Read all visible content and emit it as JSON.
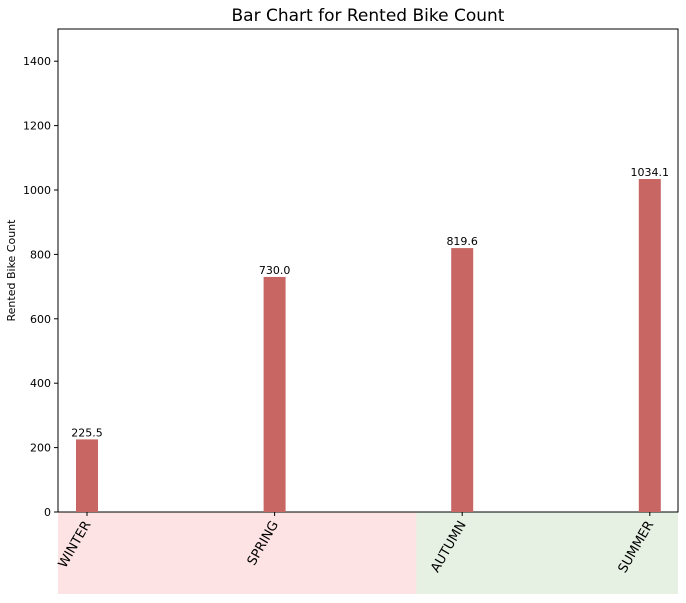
{
  "chart_data": {
    "type": "bar",
    "title": "Bar Chart for Rented Bike Count",
    "xlabel": "",
    "ylabel": "Rented Bike Count",
    "categories": [
      "WINTER",
      "SPRING",
      "AUTUMN",
      "SUMMER"
    ],
    "values": [
      225.5,
      730.0,
      819.6,
      1034.1
    ],
    "data_labels": [
      "225.5",
      "730.0",
      "819.6",
      "1034.1"
    ],
    "ylim": [
      0,
      1500
    ],
    "yticks": [
      0,
      200,
      400,
      600,
      800,
      1000,
      1200,
      1400
    ],
    "bar_color": "#c86663",
    "grid": false,
    "background_bands": [
      {
        "categories": [
          "WINTER",
          "SPRING"
        ],
        "color": "#fde3e3"
      },
      {
        "categories": [
          "AUTUMN",
          "SUMMER"
        ],
        "color": "#e6f0e3"
      }
    ]
  }
}
